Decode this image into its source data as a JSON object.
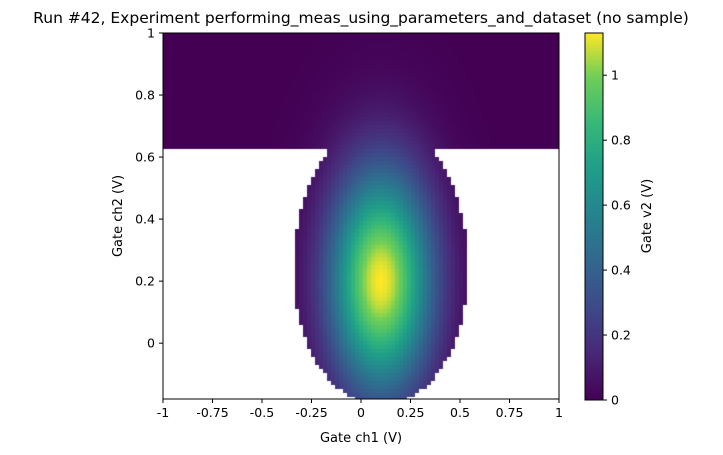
{
  "chart_data": {
    "type": "heatmap",
    "title": "Run #42, Experiment performing_meas_using_parameters_and_dataset (no sample)",
    "xlabel": "Gate ch1 (V)",
    "ylabel": "Gate ch2 (V)",
    "colorbar_label": "Gate v2 (V)",
    "colormap": "viridis",
    "xlim": [
      -1,
      1
    ],
    "ylim": [
      -0.18,
      1.0
    ],
    "clim": [
      0,
      1.13
    ],
    "x_ticks": [
      "-1",
      "-0.75",
      "-0.5",
      "-0.25",
      "0",
      "0.25",
      "0.5",
      "0.75",
      "1"
    ],
    "x_tick_values": [
      -1,
      -0.75,
      -0.5,
      -0.25,
      0,
      0.25,
      0.5,
      0.75,
      1
    ],
    "y_ticks": [
      "0",
      "0.2",
      "0.4",
      "0.6",
      "0.8",
      "1"
    ],
    "y_tick_values": [
      0,
      0.2,
      0.4,
      0.6,
      0.8,
      1
    ],
    "colorbar_ticks": [
      "0",
      "0.2",
      "0.4",
      "0.6",
      "0.8",
      "1"
    ],
    "colorbar_tick_values": [
      0,
      0.2,
      0.4,
      0.6,
      0.8,
      1
    ],
    "regions": [
      {
        "name": "uniform grid",
        "x_range": [
          -1,
          1
        ],
        "y_range": [
          0.63,
          1.0
        ]
      },
      {
        "name": "adaptive ellipse",
        "center": [
          0.1,
          0.2
        ],
        "x_halfwidth": 0.42,
        "y_range": [
          -0.18,
          0.66
        ]
      }
    ],
    "peak": {
      "x": 0.1,
      "y": 0.2,
      "value": 1.13
    },
    "grid": false
  }
}
